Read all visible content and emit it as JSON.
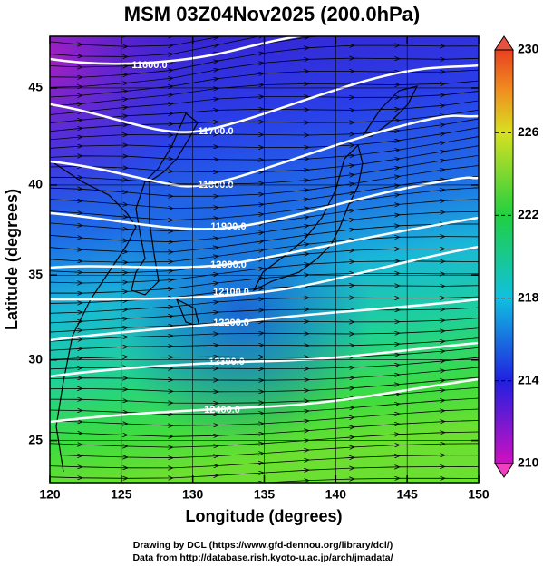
{
  "title": "MSM 03Z04Nov2025 (200.0hPa)",
  "x_axis": {
    "label": "Longitude (degrees)",
    "lim": [
      120,
      150
    ],
    "ticks": [
      120,
      125,
      130,
      135,
      140,
      145,
      150
    ]
  },
  "y_axis": {
    "label": "Latitude  (degrees)",
    "lim": [
      22.3,
      47.5
    ],
    "ticks": [
      25,
      30,
      35,
      40,
      45
    ]
  },
  "colorbar": {
    "lim": [
      210,
      230
    ],
    "ticks": [
      210,
      214,
      218,
      222,
      226,
      230
    ]
  },
  "contour_labels": [
    "11600.0",
    "11700.0",
    "11800.0",
    "11900.0",
    "12000.0",
    "12100.0",
    "12200.0",
    "12300.0",
    "12400.0"
  ],
  "credits": [
    "Drawing by DCL (https://www.gfd-dennou.org/library/dcl/)",
    "Data from http://database.rish.kyoto-u.ac.jp/arch/jmadata/"
  ]
}
